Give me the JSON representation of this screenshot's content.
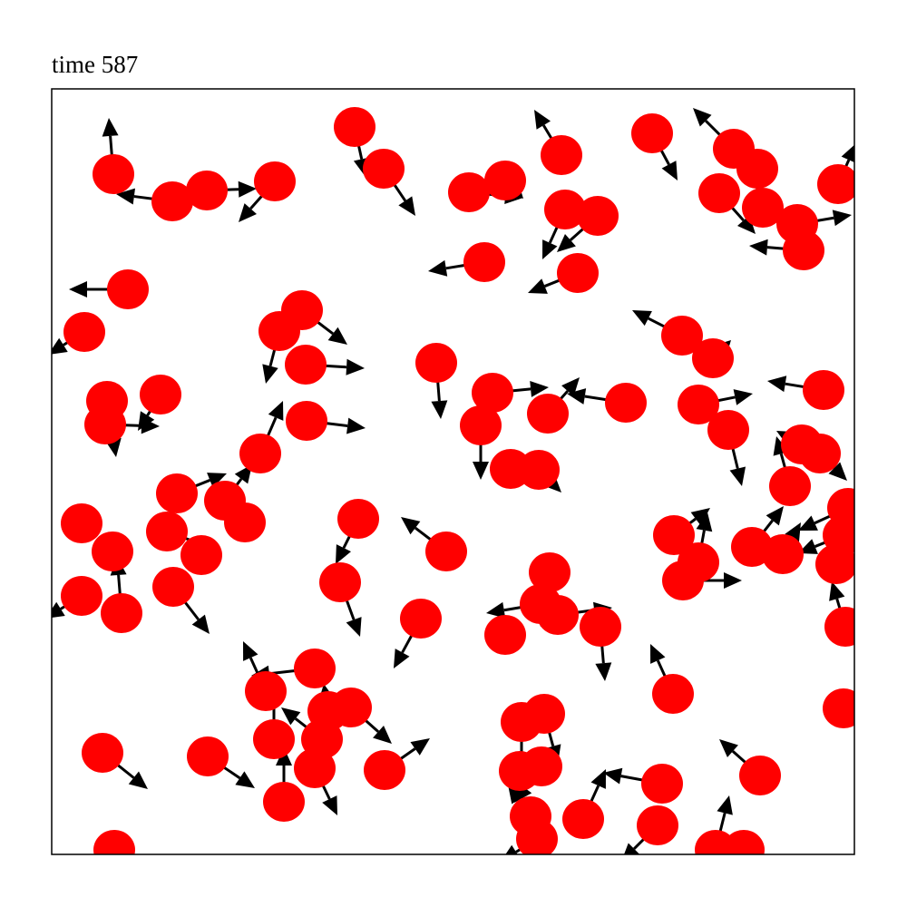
{
  "chart_data": {
    "type": "quiver",
    "title": "time 587",
    "xlim": [
      57,
      942
    ],
    "ylim": [
      942,
      98
    ],
    "color": "#ff0000",
    "arrow_color": "#000000",
    "x": [
      125,
      190,
      228,
      303,
      391,
      423,
      517,
      557,
      619,
      623,
      659,
      719,
      809,
      835,
      793,
      841,
      879,
      886,
      924,
      534,
      637,
      141,
      93,
      333,
      308,
      337,
      481,
      543,
      530,
      604,
      690,
      752,
      786,
      118,
      177,
      116,
      338,
      287,
      770,
      803,
      908,
      884,
      904,
      871,
      195,
      248,
      270,
      563,
      594,
      90,
      184,
      124,
      222,
      395,
      492,
      743,
      770,
      753,
      829,
      863,
      935,
      930,
      922,
      90,
      134,
      191,
      375,
      464,
      606,
      596,
      615,
      557,
      662,
      932,
      347,
      293,
      362,
      387,
      302,
      355,
      347,
      424,
      313,
      742,
      930,
      113,
      229,
      575,
      600,
      573,
      597,
      585,
      592,
      643,
      730,
      725,
      838,
      789,
      820,
      126
    ],
    "y": [
      192,
      222,
      210,
      200,
      140,
      186,
      212,
      199,
      171,
      231,
      238,
      147,
      164,
      186,
      213,
      229,
      247,
      276,
      203,
      289,
      301,
      319,
      366,
      342,
      365,
      402,
      400,
      433,
      469,
      456,
      444,
      370,
      395,
      442,
      435,
      468,
      464,
      500,
      446,
      474,
      430,
      490,
      500,
      536,
      544,
      552,
      576,
      517,
      518,
      577,
      586,
      608,
      612,
      572,
      608,
      590,
      620,
      640,
      603,
      611,
      560,
      590,
      622,
      657,
      676,
      647,
      642,
      682,
      631,
      666,
      678,
      700,
      691,
      691,
      737,
      762,
      784,
      780,
      815,
      815,
      847,
      849,
      884,
      765,
      781,
      830,
      834,
      796,
      787,
      850,
      845,
      900,
      925,
      903,
      864,
      910,
      855,
      937,
      937,
      937
    ],
    "u": [
      -5,
      -62,
      55,
      -40,
      12,
      35,
      60,
      20,
      -30,
      -25,
      -45,
      28,
      -45,
      0,
      40,
      55,
      60,
      -60,
      20,
      -62,
      -55,
      -65,
      -40,
      50,
      -15,
      65,
      5,
      62,
      0,
      35,
      -65,
      -55,
      20,
      10,
      -25,
      60,
      65,
      25,
      60,
      15,
      -62,
      -28,
      30,
      -15,
      55,
      30,
      10,
      15,
      25,
      -10,
      60,
      5,
      10,
      -25,
      -50,
      40,
      10,
      65,
      35,
      20,
      -55,
      -50,
      -5,
      -40,
      -5,
      40,
      22,
      -30,
      -10,
      -60,
      60,
      10,
      5,
      -15,
      -70,
      -25,
      -5,
      45,
      0,
      -45,
      25,
      50,
      0,
      -25,
      10,
      50,
      52,
      0,
      15,
      10,
      -30,
      -25,
      -40,
      25,
      -65,
      -40,
      -45,
      15,
      10,
      10
    ],
    "v": [
      -62,
      -8,
      -2,
      45,
      55,
      52,
      6,
      20,
      -50,
      55,
      40,
      52,
      -45,
      50,
      45,
      10,
      -10,
      -5,
      -45,
      10,
      22,
      0,
      25,
      38,
      58,
      4,
      62,
      -6,
      60,
      -40,
      -10,
      -28,
      -20,
      62,
      40,
      2,
      8,
      -58,
      -12,
      62,
      -10,
      -15,
      30,
      -55,
      -22,
      -40,
      -10,
      10,
      25,
      10,
      22,
      -15,
      10,
      50,
      -38,
      -30,
      -55,
      0,
      -45,
      -35,
      25,
      20,
      -20,
      25,
      -62,
      52,
      60,
      55,
      60,
      10,
      -8,
      10,
      60,
      -50,
      8,
      -55,
      -30,
      40,
      -60,
      -35,
      52,
      -35,
      -60,
      -55,
      10,
      40,
      35,
      60,
      55,
      10,
      40,
      -35,
      25,
      -55,
      -12,
      40,
      -40,
      -60,
      10,
      10
    ]
  }
}
